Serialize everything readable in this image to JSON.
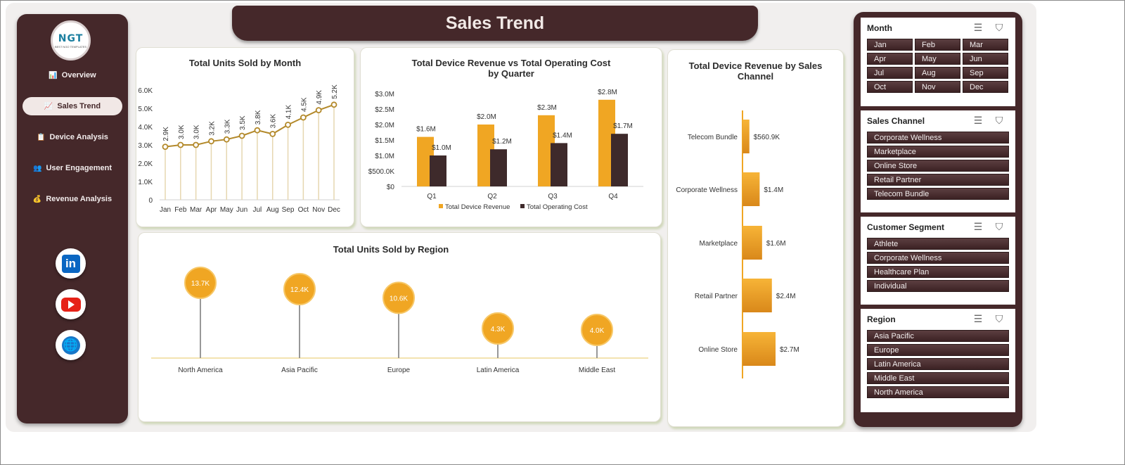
{
  "header": {
    "title": "Sales Trend"
  },
  "logo": {
    "text": "NGT",
    "subtext": "BEST NGO TEMPLATES"
  },
  "sidebar": {
    "items": [
      {
        "label": "Overview",
        "icon": "bar-chart-icon"
      },
      {
        "label": "Sales Trend",
        "icon": "line-chart-icon",
        "active": true
      },
      {
        "label": "Device Analysis",
        "icon": "clipboard-icon"
      },
      {
        "label": "User Engagement",
        "icon": "people-icon"
      },
      {
        "label": "Revenue Analysis",
        "icon": "money-bag-icon"
      }
    ],
    "social": [
      "linkedin-icon",
      "youtube-icon",
      "globe-icon"
    ]
  },
  "chart_units": {
    "type": "line",
    "title": "Total Units Sold by Month",
    "categories": [
      "Jan",
      "Feb",
      "Mar",
      "Apr",
      "May",
      "Jun",
      "Jul",
      "Aug",
      "Sep",
      "Oct",
      "Nov",
      "Dec"
    ],
    "values": [
      2.9,
      3.0,
      3.0,
      3.2,
      3.3,
      3.5,
      3.8,
      3.6,
      4.1,
      4.5,
      4.9,
      5.2
    ],
    "labels": [
      "2.9K",
      "3.0K",
      "3.0K",
      "3.2K",
      "3.3K",
      "3.5K",
      "3.8K",
      "3.6K",
      "4.1K",
      "4.5K",
      "4.9K",
      "5.2K"
    ],
    "yticks": [
      "0",
      "1.0K",
      "2.0K",
      "3.0K",
      "4.0K",
      "5.0K",
      "6.0K"
    ],
    "ylim": [
      0,
      6
    ],
    "color": "#b3892a"
  },
  "chart_quarter": {
    "type": "bar",
    "title": "Total Device Revenue vs Total Operating Cost by Quarter",
    "categories": [
      "Q1",
      "Q2",
      "Q3",
      "Q4"
    ],
    "series": [
      {
        "name": "Total Device Revenue",
        "values": [
          1.6,
          2.0,
          2.3,
          2.8
        ],
        "labels": [
          "$1.6M",
          "$2.0M",
          "$2.3M",
          "$2.8M"
        ],
        "color": "#f0a623"
      },
      {
        "name": "Total Operating Cost",
        "values": [
          1.0,
          1.2,
          1.4,
          1.7
        ],
        "labels": [
          "$1.0M",
          "$1.2M",
          "$1.4M",
          "$1.7M"
        ],
        "color": "#3e2a2b"
      }
    ],
    "yticks": [
      "$0",
      "$500.0K",
      "$1.0M",
      "$1.5M",
      "$2.0M",
      "$2.5M",
      "$3.0M"
    ],
    "ylim": [
      0,
      3.0
    ]
  },
  "chart_region": {
    "type": "lollipop",
    "title": "Total Units Sold by Region",
    "categories": [
      "North America",
      "Asia Pacific",
      "Europe",
      "Latin America",
      "Middle East"
    ],
    "values": [
      13.7,
      12.4,
      10.6,
      4.3,
      4.0
    ],
    "labels": [
      "13.7K",
      "12.4K",
      "10.6K",
      "4.3K",
      "4.0K"
    ],
    "color": "#f0a623"
  },
  "chart_channel": {
    "type": "bar-horizontal",
    "title": "Total Device Revenue by Sales Channel",
    "categories": [
      "Telecom Bundle",
      "Corporate Wellness",
      "Marketplace",
      "Retail Partner",
      "Online Store"
    ],
    "values": [
      0.5609,
      1.4,
      1.6,
      2.4,
      2.7
    ],
    "labels": [
      "$560.9K",
      "$1.4M",
      "$1.6M",
      "$2.4M",
      "$2.7M"
    ],
    "color": "#f0a623"
  },
  "slicers": [
    {
      "title": "Month",
      "cols": 3,
      "items": [
        "Jan",
        "Feb",
        "Mar",
        "Apr",
        "May",
        "Jun",
        "Jul",
        "Aug",
        "Sep",
        "Oct",
        "Nov",
        "Dec"
      ]
    },
    {
      "title": "Sales Channel",
      "cols": 1,
      "items": [
        "Corporate Wellness",
        "Marketplace",
        "Online Store",
        "Retail Partner",
        "Telecom Bundle"
      ]
    },
    {
      "title": "Customer Segment",
      "cols": 1,
      "items": [
        "Athlete",
        "Corporate Wellness",
        "Healthcare Plan",
        "Individual"
      ]
    },
    {
      "title": "Region",
      "cols": 1,
      "items": [
        "Asia Pacific",
        "Europe",
        "Latin America",
        "Middle East",
        "North America"
      ]
    }
  ]
}
